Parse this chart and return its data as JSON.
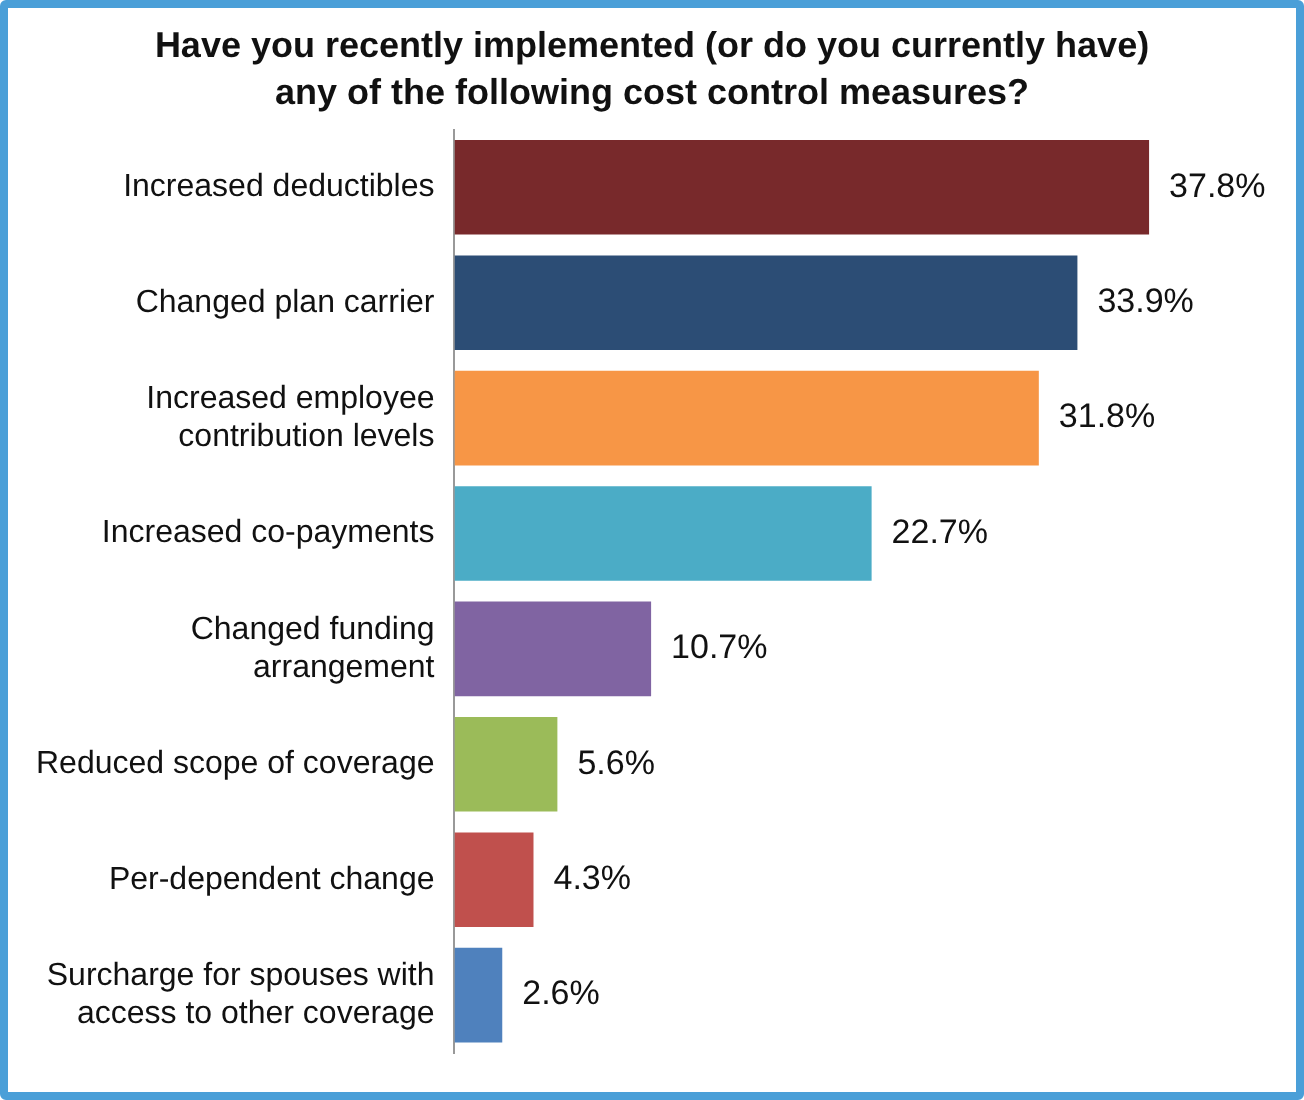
{
  "chart_data": {
    "type": "bar",
    "orientation": "horizontal",
    "title": "Have you recently implemented (or do you currently have) any of the following cost control measures?",
    "categories": [
      "Increased deductibles",
      "Changed plan carrier",
      "Increased employee\ncontribution levels",
      "Increased co-payments",
      "Changed funding\narrangement",
      "Reduced scope of coverage",
      "Per-dependent change",
      "Surcharge for spouses with\naccess to other coverage"
    ],
    "values": [
      37.8,
      33.9,
      31.8,
      22.7,
      10.7,
      5.6,
      4.3,
      2.6
    ],
    "colors": [
      "#78292b",
      "#2c4d75",
      "#f79646",
      "#4bacc6",
      "#8064a2",
      "#9bbb59",
      "#c0504d",
      "#4f81bd"
    ],
    "value_labels": [
      "37.8%",
      "33.9%",
      "31.8%",
      "22.7%",
      "10.7%",
      "5.6%",
      "4.3%",
      "2.6%"
    ],
    "legend": false
  }
}
